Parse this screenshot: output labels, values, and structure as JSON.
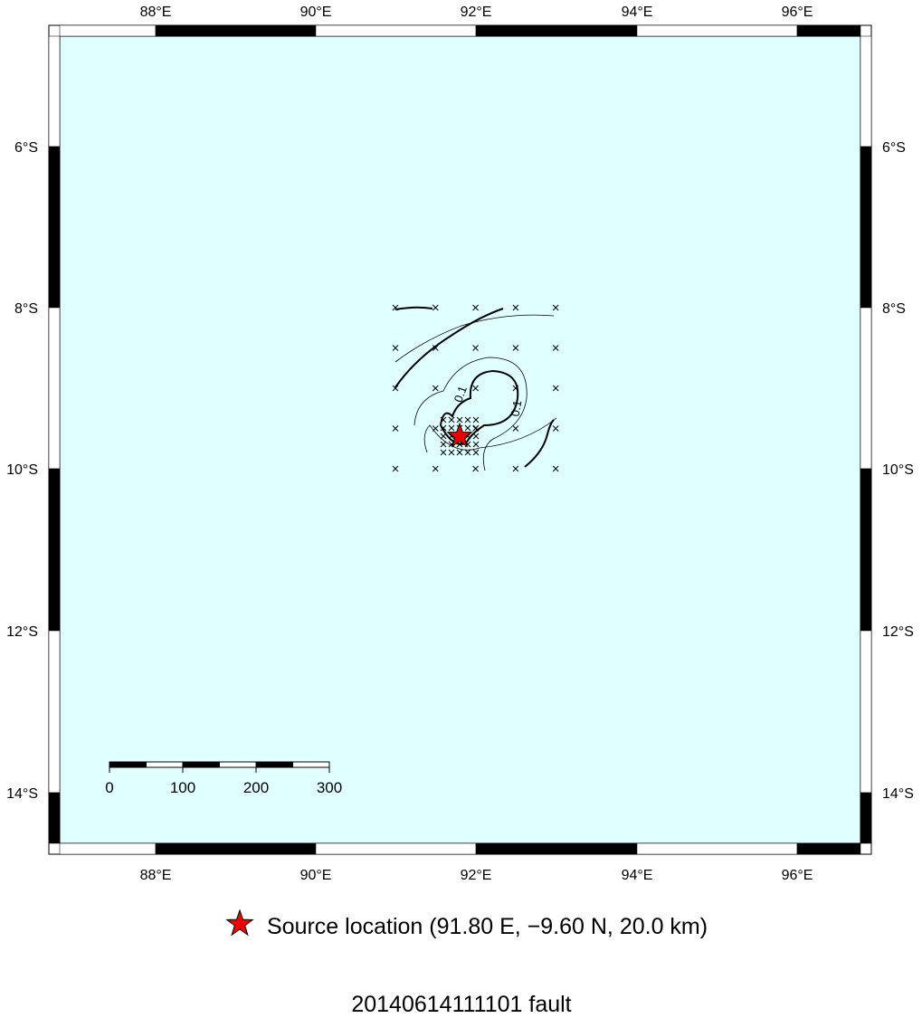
{
  "map": {
    "lon_labels": [
      "88°E",
      "90°E",
      "92°E",
      "94°E",
      "96°E"
    ],
    "lat_labels": [
      "6°S",
      "8°S",
      "10°S",
      "12°S",
      "14°S"
    ],
    "contour_labels": [
      "0.1",
      "0.1"
    ],
    "scale_labels": [
      "0",
      "100",
      "200",
      "300"
    ]
  },
  "legend": {
    "label": "Source location (91.80 E, −9.60 N, 20.0 km)"
  },
  "footer": {
    "title": "20140614111101 fault"
  }
}
